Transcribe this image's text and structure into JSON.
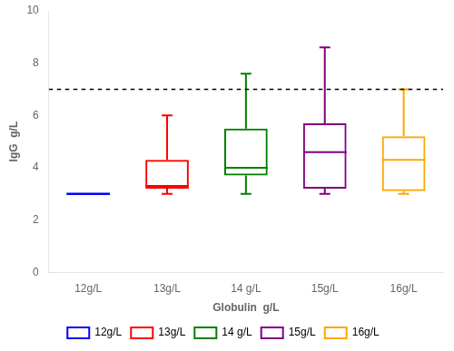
{
  "chart_data": {
    "type": "box",
    "xlabel": "Globulin  g/L",
    "ylabel": "IgG  g/L",
    "categories": [
      "12g/L",
      "13g/L",
      "14 g/L",
      "15g/L",
      "16g/L"
    ],
    "series": [
      {
        "name": "12g/L",
        "color": "blue",
        "type": "line",
        "whislo": 3.0,
        "q1": 3.0,
        "med": 3.0,
        "q3": 3.0,
        "whishi": 3.0
      },
      {
        "name": "13g/L",
        "color": "red",
        "type": "box",
        "whislo": 3.0,
        "q1": 3.2,
        "med": 3.3,
        "q3": 4.3,
        "whishi": 6.0
      },
      {
        "name": "14 g/L",
        "color": "green",
        "type": "box",
        "whislo": 3.0,
        "q1": 3.7,
        "med": 4.0,
        "q3": 5.5,
        "whishi": 7.6
      },
      {
        "name": "15g/L",
        "color": "purple",
        "type": "box",
        "whislo": 3.0,
        "q1": 3.2,
        "med": 4.6,
        "q3": 5.7,
        "whishi": 8.6
      },
      {
        "name": "16g/L",
        "color": "orange",
        "type": "box",
        "whislo": 3.0,
        "q1": 3.1,
        "med": 4.3,
        "q3": 5.2,
        "whishi": 7.0
      }
    ],
    "reference_line": 7.0,
    "ylim": [
      0,
      10
    ],
    "yticks": [
      0,
      2,
      4,
      6,
      8,
      10
    ],
    "grid": false,
    "legend": "bottom"
  }
}
